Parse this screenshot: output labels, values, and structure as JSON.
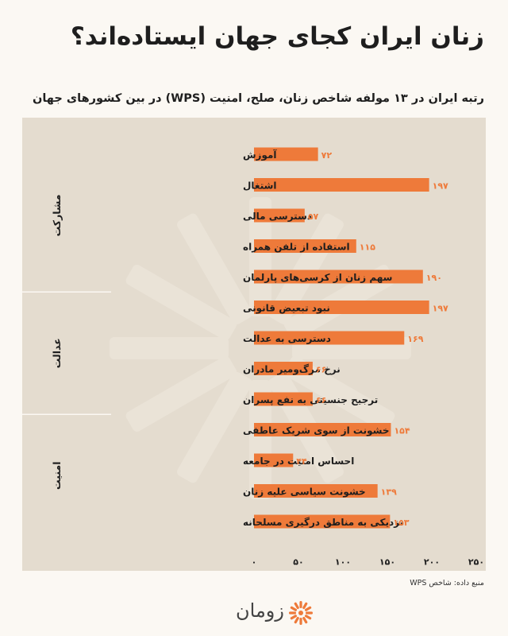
{
  "title": "زنان ایران کجای جهان ایستاده‌اند؟",
  "chart_data": {
    "type": "bar",
    "orientation": "horizontal",
    "title": "رتبه ایران در ۱۳ مولفه شاخص زنان، صلح، امنیت (WPS) در بین کشورهای جهان",
    "xlim": [
      0,
      250
    ],
    "xticks": [
      "۰",
      "۵۰",
      "۱۰۰",
      "۱۵۰",
      "۲۰۰",
      "۲۵۰"
    ],
    "bar_color": "#ee7a3a",
    "groups": [
      {
        "name": "مشارکت",
        "items": [
          {
            "label": "آموزش",
            "value": 72,
            "value_label": "۷۲"
          },
          {
            "label": "اشتغال",
            "value": 197,
            "value_label": "۱۹۷"
          },
          {
            "label": "دسترسی مالی",
            "value": 57,
            "value_label": "۵۷"
          },
          {
            "label": "استفاده از تلفن همراه",
            "value": 115,
            "value_label": "۱۱۵"
          },
          {
            "label": "سهم زنان از کرسی‌های پارلمان",
            "value": 190,
            "value_label": "۱۹۰"
          }
        ]
      },
      {
        "name": "عدالت",
        "items": [
          {
            "label": "نبود تبعیض قانونی",
            "value": 197,
            "value_label": "۱۹۷"
          },
          {
            "label": "دسترسی به عدالت",
            "value": 169,
            "value_label": "۱۶۹"
          },
          {
            "label": "نرخ مرگ‌ومیر مادران",
            "value": 66,
            "value_label": "۶۶"
          },
          {
            "label": "ترجیح جنسیتی به نفع پسران",
            "value": 66,
            "value_label": "۶۶"
          }
        ]
      },
      {
        "name": "امنیت",
        "items": [
          {
            "label": "خشونت از سوی شریک عاطفی",
            "value": 154,
            "value_label": "۱۵۴"
          },
          {
            "label": "احساس امنیت در جامعه",
            "value": 44,
            "value_label": "۴۴"
          },
          {
            "label": "خشونت سیاسی علیه زنان",
            "value": 139,
            "value_label": "۱۳۹"
          },
          {
            "label": "نزدیکی به مناطق درگیری مسلحانه",
            "value": 153,
            "value_label": "۱۵۳"
          }
        ]
      }
    ]
  },
  "source": "منبع داده: شاخص WPS",
  "logo_text": "زومان",
  "logo_icon": "zooman-burst-icon"
}
